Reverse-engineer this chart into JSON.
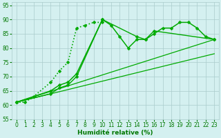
{
  "bg_color": "#d4f0f0",
  "grid_color": "#aacccc",
  "line_color": "#00aa00",
  "xlabel": "Humidité relative (%)",
  "xlabel_color": "#007700",
  "tick_color": "#007700",
  "ylim": [
    55,
    96
  ],
  "xlim": [
    -0.5,
    23.5
  ],
  "yticks": [
    55,
    60,
    65,
    70,
    75,
    80,
    85,
    90,
    95
  ],
  "xticks": [
    0,
    1,
    2,
    3,
    4,
    5,
    6,
    7,
    8,
    9,
    10,
    11,
    12,
    13,
    14,
    15,
    16,
    17,
    18,
    19,
    20,
    21,
    22,
    23
  ],
  "series": [
    {
      "x": [
        0,
        1,
        2,
        4,
        5,
        6,
        7,
        8,
        9,
        10
      ],
      "y": [
        61,
        61,
        63,
        68,
        72,
        75,
        87,
        88,
        89,
        89
      ],
      "marker": "D",
      "markersize": 2.5,
      "linestyle": ":",
      "linewidth": 1.2
    },
    {
      "x": [
        0,
        4,
        5,
        6,
        7,
        10,
        11,
        12,
        13,
        14,
        15,
        16,
        17,
        18,
        19,
        20,
        21,
        22,
        23
      ],
      "y": [
        61,
        65,
        67,
        68,
        71,
        90,
        88,
        84,
        80,
        83,
        83,
        85,
        87,
        87,
        89,
        89,
        87,
        84,
        83
      ],
      "marker": "D",
      "markersize": 2.5,
      "linestyle": "-",
      "linewidth": 1.1
    },
    {
      "x": [
        0,
        4,
        5,
        6,
        7,
        10,
        14,
        15,
        16,
        23
      ],
      "y": [
        61,
        64,
        66,
        67,
        70,
        90,
        84,
        83,
        86,
        83
      ],
      "marker": "D",
      "markersize": 2.5,
      "linestyle": "-",
      "linewidth": 1.0
    },
    {
      "x": [
        0,
        23
      ],
      "y": [
        61,
        83
      ],
      "marker": null,
      "markersize": 0,
      "linestyle": "-",
      "linewidth": 0.9
    },
    {
      "x": [
        0,
        23
      ],
      "y": [
        61,
        78
      ],
      "marker": null,
      "markersize": 0,
      "linestyle": "-",
      "linewidth": 0.9
    }
  ]
}
